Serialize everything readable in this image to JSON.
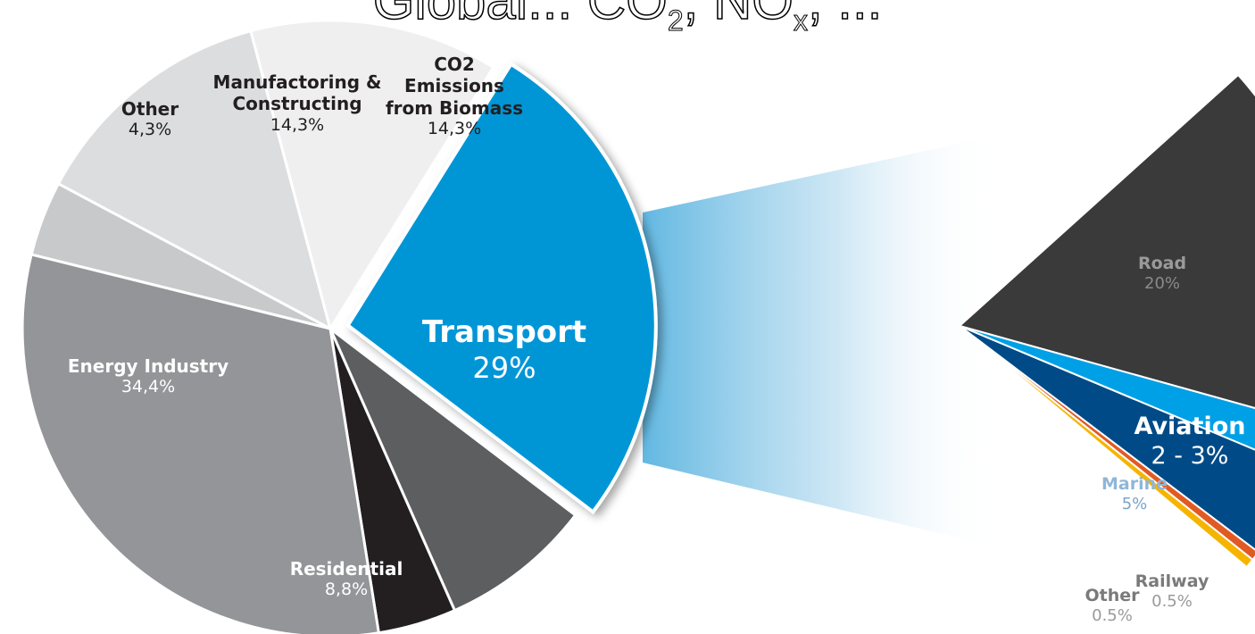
{
  "title": {
    "main": "Global...",
    "pieces": [
      "Global...",
      "CO",
      "2",
      ", NO",
      "x",
      ", ..."
    ]
  },
  "chart_data": [
    {
      "type": "pie",
      "title": "",
      "slices": [
        {
          "name": "Transport",
          "value": 29,
          "label": "29%",
          "color": "#0096d6"
        },
        {
          "name": "Residential",
          "value": 8.8,
          "label": "8,8%",
          "color": "#5d5e60"
        },
        {
          "name": "",
          "value": 4.5,
          "label": "",
          "color": "#231f20"
        },
        {
          "name": "Energy Industry",
          "value": 34.4,
          "label": "34,4%",
          "color": "#939598"
        },
        {
          "name": "Other",
          "value": 4.3,
          "label": "4,3%",
          "color": "#c8c9cb"
        },
        {
          "name": "Manufactoring & Constructing",
          "value": 14.3,
          "label": "14,3%",
          "color": "#dcdddf"
        },
        {
          "name": "CO2 Emissions from Biomass",
          "value": 14.3,
          "label": "14,3%",
          "color": "#efefef"
        }
      ]
    },
    {
      "type": "pie",
      "title": "",
      "slices": [
        {
          "name": "Road",
          "value": 20,
          "label": "20%",
          "color": "#3a3a3a"
        },
        {
          "name": "Aviation",
          "value": 2.5,
          "label": "2 - 3%",
          "color": "#00a0e6"
        },
        {
          "name": "Marine",
          "value": 5,
          "label": "5%",
          "color": "#004b87"
        },
        {
          "name": "Railway",
          "value": 0.5,
          "label": "0.5%",
          "color": "#e25a23"
        },
        {
          "name": "Other",
          "value": 0.5,
          "label": "0.5%",
          "color": "#f5b400"
        }
      ]
    }
  ]
}
